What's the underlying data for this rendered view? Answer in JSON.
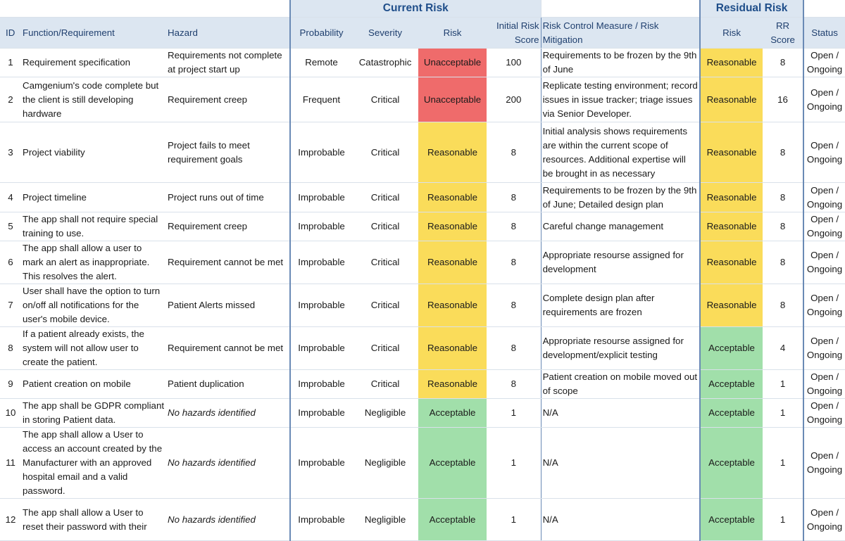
{
  "header": {
    "current_risk": "Current Risk",
    "residual_risk": "Residual Risk",
    "cols": {
      "id": "ID",
      "function": "Function/Requirement",
      "hazard": "Hazard",
      "probability": "Probability",
      "severity": "Severity",
      "risk": "Risk",
      "initial_score_1": "Initial Risk",
      "initial_score_2": "Score",
      "control_1": "Risk Control Measure / Risk",
      "control_2": "Mitigation",
      "res_risk": "Risk",
      "rr_1": "RR",
      "rr_2": "Score",
      "status": "Status"
    }
  },
  "colors": {
    "unacceptable": "#ef6b6b",
    "reasonable": "#fadc5a",
    "acceptable": "#a1dfaa",
    "header_bg": "#dce6f1"
  },
  "rows": [
    {
      "id": "1",
      "function": "Requirement specification",
      "hazard": "Requirements not complete at project start up",
      "hazard_italic": false,
      "probability": "Remote",
      "severity": "Catastrophic",
      "risk": "Unacceptable",
      "score": "100",
      "control": "Requirements to be frozen by the 9th of June",
      "res_risk": "Reasonable",
      "rr": "8",
      "status": "Open / Ongoing"
    },
    {
      "id": "2",
      "function": "Camgenium's code complete but the client is still developing hardware",
      "hazard": "Requirement creep",
      "hazard_italic": false,
      "probability": "Frequent",
      "severity": "Critical",
      "risk": "Unacceptable",
      "score": "200",
      "control": "Replicate testing environment; record issues in issue tracker; triage issues via Senior Developer.",
      "res_risk": "Reasonable",
      "rr": "16",
      "status": "Open / Ongoing"
    },
    {
      "id": "3",
      "function": "Project viability",
      "hazard": "Project fails to meet requirement goals",
      "hazard_italic": false,
      "probability": "Improbable",
      "severity": "Critical",
      "risk": "Reasonable",
      "score": "8",
      "control": "Initial analysis shows requirements are within the current scope of resources. Additional expertise will be brought in as necessary",
      "res_risk": "Reasonable",
      "rr": "8",
      "status": "Open / Ongoing"
    },
    {
      "id": "4",
      "function": "Project timeline",
      "hazard": "Project runs out of time",
      "hazard_italic": false,
      "probability": "Improbable",
      "severity": "Critical",
      "risk": "Reasonable",
      "score": "8",
      "control": "Requirements to be frozen by the 9th of June; Detailed design plan",
      "res_risk": "Reasonable",
      "rr": "8",
      "status": "Open / Ongoing"
    },
    {
      "id": "5",
      "function": "The app shall not require special training to use.",
      "hazard": "Requirement creep",
      "hazard_italic": false,
      "probability": "Improbable",
      "severity": "Critical",
      "risk": "Reasonable",
      "score": "8",
      "control": "Careful change management",
      "res_risk": "Reasonable",
      "rr": "8",
      "status": "Open / Ongoing"
    },
    {
      "id": "6",
      "function": "The app shall allow a user to mark an alert as inappropriate. This resolves the alert.",
      "hazard": "Requirement cannot be met",
      "hazard_italic": false,
      "probability": "Improbable",
      "severity": "Critical",
      "risk": "Reasonable",
      "score": "8",
      "control": "Appropriate resourse assigned for development",
      "res_risk": "Reasonable",
      "rr": "8",
      "status": "Open / Ongoing"
    },
    {
      "id": "7",
      "function": "User shall have the option to turn on/off all notifications for the user's mobile device.",
      "hazard": "Patient Alerts missed",
      "hazard_italic": false,
      "probability": "Improbable",
      "severity": "Critical",
      "risk": "Reasonable",
      "score": "8",
      "control": "Complete design plan after requirements are frozen",
      "res_risk": "Reasonable",
      "rr": "8",
      "status": "Open / Ongoing"
    },
    {
      "id": "8",
      "function": "If a patient already exists, the system will not allow user to create the patient.",
      "hazard": "Requirement cannot be met",
      "hazard_italic": false,
      "probability": "Improbable",
      "severity": "Critical",
      "risk": "Reasonable",
      "score": "8",
      "control": "Appropriate resourse assigned for development/explicit testing",
      "res_risk": "Acceptable",
      "rr": "4",
      "status": "Open / Ongoing"
    },
    {
      "id": "9",
      "function": "Patient creation on mobile",
      "hazard": "Patient duplication",
      "hazard_italic": false,
      "probability": "Improbable",
      "severity": "Critical",
      "risk": "Reasonable",
      "score": "8",
      "control": "Patient creation on mobile moved out of scope",
      "res_risk": "Acceptable",
      "rr": "1",
      "status": "Open / Ongoing"
    },
    {
      "id": "10",
      "function": "The app shall be GDPR compliant in storing Patient data.",
      "hazard": "No hazards identified",
      "hazard_italic": true,
      "probability": "Improbable",
      "severity": "Negligible",
      "risk": "Acceptable",
      "score": "1",
      "control": "N/A",
      "res_risk": "Acceptable",
      "rr": "1",
      "status": "Open / Ongoing"
    },
    {
      "id": "11",
      "function": "The app shall allow a User to access an account created by the Manufacturer with an approved hospital email and a valid password.",
      "hazard": "No hazards identified",
      "hazard_italic": true,
      "probability": "Improbable",
      "severity": "Negligible",
      "risk": "Acceptable",
      "score": "1",
      "control": "N/A",
      "res_risk": "Acceptable",
      "rr": "1",
      "status": "Open / Ongoing"
    },
    {
      "id": "12",
      "function": "The app shall allow a User to reset their password with their",
      "hazard": "No hazards identified",
      "hazard_italic": true,
      "probability": "Improbable",
      "severity": "Negligible",
      "risk": "Acceptable",
      "score": "1",
      "control": "N/A",
      "res_risk": "Acceptable",
      "rr": "1",
      "status": "Open / Ongoing"
    }
  ]
}
